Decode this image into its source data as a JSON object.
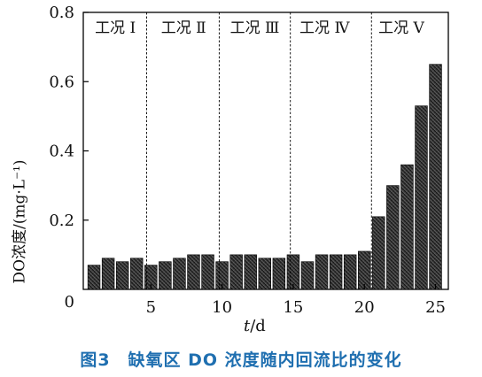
{
  "chart_data": {
    "type": "bar",
    "x": [
      1,
      2,
      3,
      4,
      5,
      6,
      7,
      8,
      9,
      10,
      11,
      12,
      13,
      14,
      15,
      16,
      17,
      18,
      19,
      20,
      21,
      22,
      23,
      24,
      25
    ],
    "values": [
      0.07,
      0.09,
      0.08,
      0.09,
      0.07,
      0.08,
      0.09,
      0.1,
      0.1,
      0.08,
      0.1,
      0.1,
      0.09,
      0.09,
      0.1,
      0.08,
      0.1,
      0.1,
      0.1,
      0.11,
      0.21,
      0.3,
      0.36,
      0.53,
      0.65
    ],
    "xlabel": "t/d",
    "xlabel_var": "t",
    "xlabel_unit": "/d",
    "ylabel": "DO浓度/(mg·L⁻¹)",
    "ylim": [
      0,
      0.8
    ],
    "yticks": [
      0,
      0.2,
      0.4,
      0.6,
      0.8
    ],
    "ytick_labels": [
      "0",
      "0.2",
      "0.4",
      "0.6",
      "0.8"
    ],
    "xticks": [
      5,
      10,
      15,
      20,
      25
    ],
    "xtick_labels": [
      "5",
      "10",
      "15",
      "20",
      "25"
    ],
    "xlim": [
      0.25,
      25.9
    ],
    "phase_boundaries": [
      4.7,
      9.8,
      14.8,
      20.5
    ],
    "phases": [
      "工况 Ⅰ",
      "工况 Ⅱ",
      "工况 Ⅲ",
      "工况 Ⅳ",
      "工况 Ⅴ"
    ],
    "phase_centers": [
      2.5,
      7.3,
      12.3,
      17.2,
      22.6
    ],
    "grid": false
  },
  "caption": "图3　缺氧区 DO 浓度随内回流比的变化",
  "colors": {
    "caption": "#1f6fb0",
    "bar_dark": "#111111",
    "bar_light": "#5a5a5a",
    "axis": "#000000"
  }
}
